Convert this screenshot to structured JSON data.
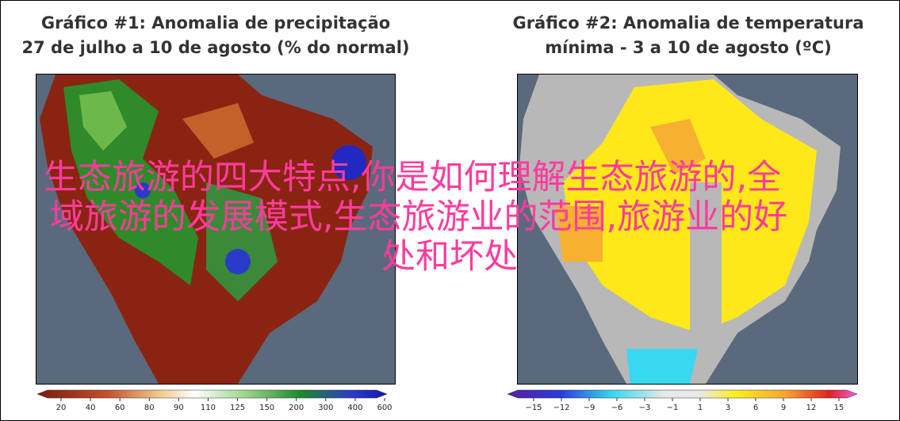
{
  "maps": [
    {
      "title_line1": "Gráfico #1: Anomalia de precipitação",
      "title_line2": "27 de julho a 10 de agosto (% do normal)",
      "colorbar_labels": [
        "20",
        "40",
        "60",
        "80",
        "90",
        "110",
        "125",
        "150",
        "200",
        "300",
        "400",
        "600"
      ]
    },
    {
      "title_line1": "Gráfico #2: Anomalia de temperatura",
      "title_line2": "mínima - 3 a 10 de agosto (ºC)",
      "colorbar_labels": [
        "−15",
        "−12",
        "−9",
        "−6",
        "−3",
        "−1",
        "1",
        "3",
        "6",
        "9",
        "12",
        "15"
      ]
    }
  ],
  "overlay": {
    "lines": [
      "生态旅游的四大特点,你是如何理解生态旅游的,全",
      "域旅游的发展模式,生态旅游业的范围,旅游业的好",
      "处和坏处"
    ]
  }
}
